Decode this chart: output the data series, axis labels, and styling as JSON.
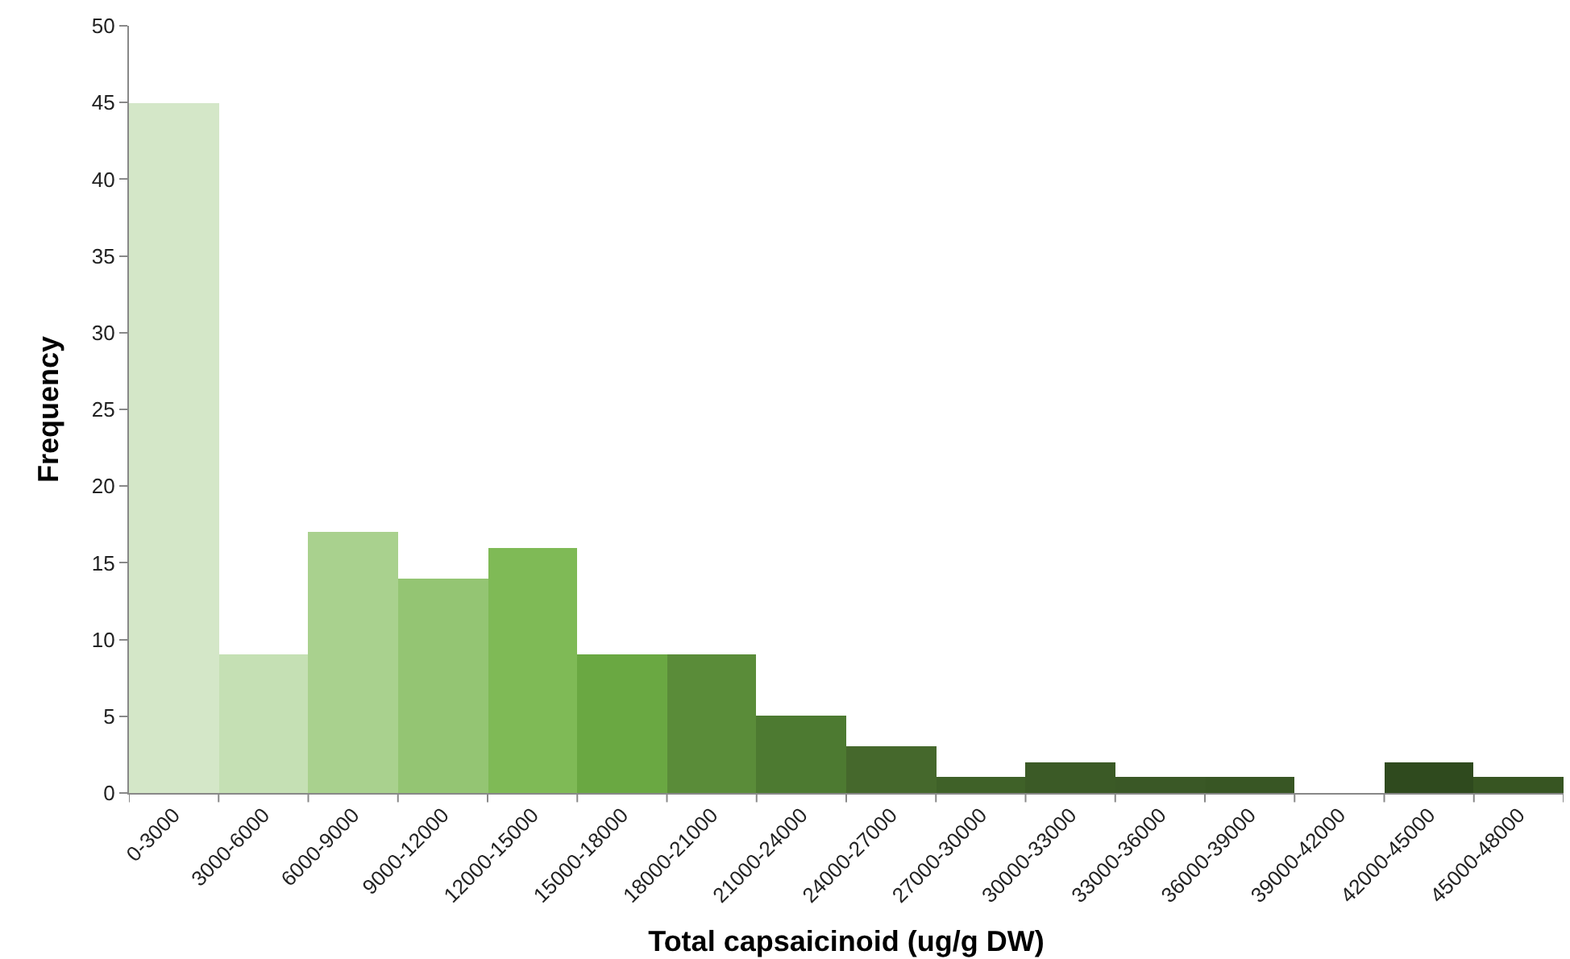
{
  "chart_data": {
    "type": "bar",
    "xlabel": "Total capsaicinoid (ug/g DW)",
    "ylabel": "Frequency",
    "categories": [
      "0-3000",
      "3000-6000",
      "6000-9000",
      "9000-12000",
      "12000-15000",
      "15000-18000",
      "18000-21000",
      "21000-24000",
      "24000-27000",
      "27000-30000",
      "30000-33000",
      "33000-36000",
      "36000-39000",
      "39000-42000",
      "42000-45000",
      "45000-48000"
    ],
    "values": [
      45,
      9,
      17,
      14,
      16,
      9,
      9,
      5,
      3,
      1,
      2,
      1,
      1,
      0,
      2,
      1
    ],
    "colors": [
      "#d4e7c8",
      "#c5e0b4",
      "#a9d18e",
      "#94c573",
      "#7fba56",
      "#6aa842",
      "#5a8c39",
      "#4d7a31",
      "#45682c",
      "#3f6128",
      "#3b5a26",
      "#3a5826",
      "#385624",
      "#385624",
      "#2f4a1e",
      "#375522"
    ],
    "ylim": [
      0,
      50
    ],
    "yticks": [
      0,
      5,
      10,
      15,
      20,
      25,
      30,
      35,
      40,
      45,
      50
    ],
    "legend": false
  }
}
